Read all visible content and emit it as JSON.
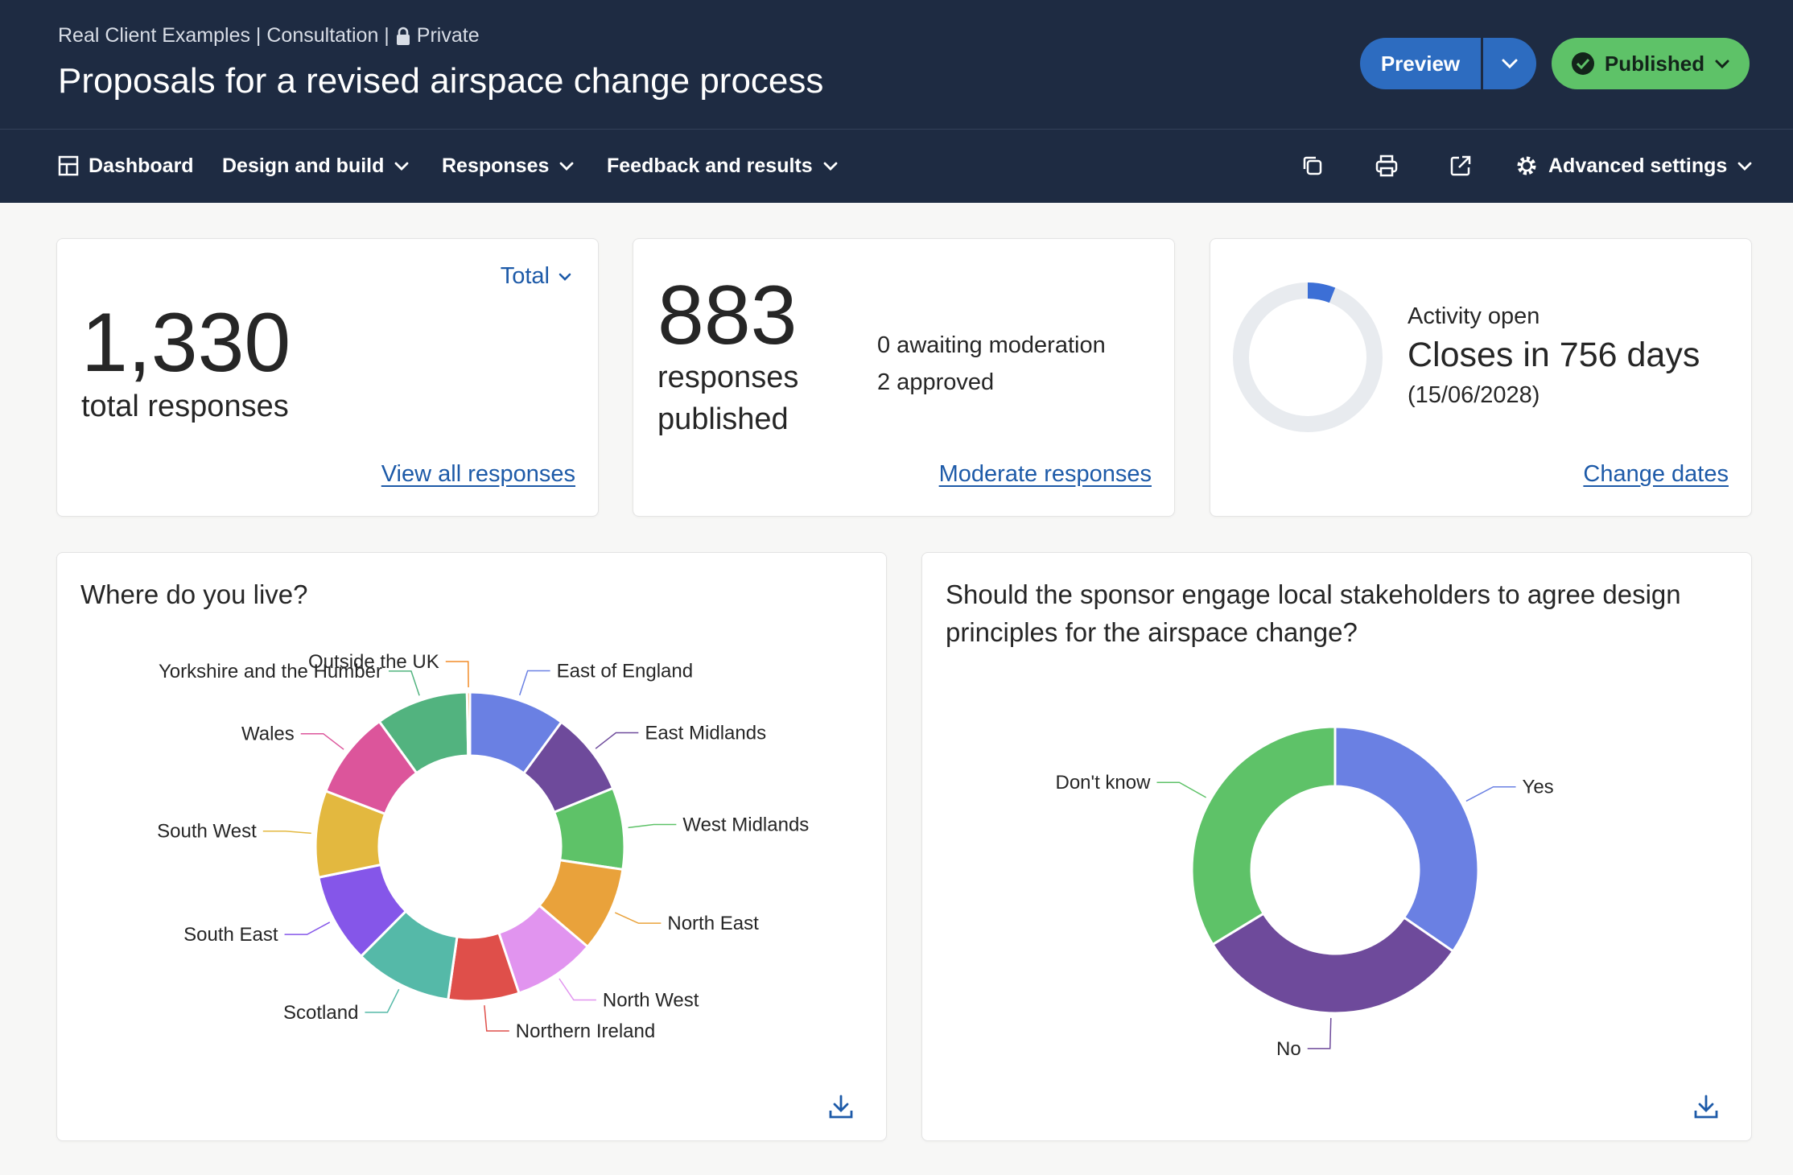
{
  "header": {
    "breadcrumb_1": "Real Client Examples | Consultation |",
    "breadcrumb_private": "Private",
    "title": "Proposals for a revised airspace change process",
    "preview_label": "Preview",
    "published_label": "Published"
  },
  "nav": {
    "dashboard": "Dashboard",
    "design_build": "Design and build",
    "responses": "Responses",
    "feedback": "Feedback and results",
    "advanced": "Advanced settings"
  },
  "stats": {
    "total": {
      "filter_label": "Total",
      "value": "1,330",
      "label": "total responses",
      "link": "View all responses"
    },
    "published": {
      "value": "883",
      "label_1": "responses",
      "label_2": "published",
      "awaiting": "0 awaiting moderation",
      "approved": "2 approved",
      "link": "Moderate responses"
    },
    "activity": {
      "status": "Activity open",
      "closes": "Closes in 756 days",
      "date": "(15/06/2028)",
      "link": "Change dates",
      "progress_fraction": 0.06
    }
  },
  "colors": {
    "accent": "#2d6cc0",
    "published": "#5ec268",
    "header_bg": "#1e2b42",
    "link": "#1d5aa8"
  },
  "chart_data": [
    {
      "type": "pie",
      "title": "Where do you live?",
      "categories": [
        "East of England",
        "East Midlands",
        "West Midlands",
        "North East",
        "North West",
        "Northern Ireland",
        "Scotland",
        "South East",
        "South West",
        "Wales",
        "Yorkshire and the Humber",
        "Outside the UK"
      ],
      "values": [
        9.8,
        8.5,
        8.3,
        8.6,
        8.4,
        7.2,
        9.9,
        9.1,
        8.8,
        8.9,
        9.4,
        0.3
      ],
      "colors": [
        "#6a80e3",
        "#6e4a9b",
        "#5ec268",
        "#e9a23b",
        "#e194ef",
        "#df4f4a",
        "#55b9a8",
        "#8556e9",
        "#e3b83f",
        "#dc559b",
        "#52b37f",
        "#f28c28"
      ]
    },
    {
      "type": "pie",
      "title": "Should the sponsor engage local stakeholders to agree design principles for the airspace change?",
      "categories": [
        "Yes",
        "No",
        "Don't know"
      ],
      "values": [
        34.6,
        31.7,
        33.7
      ],
      "colors": [
        "#6a80e3",
        "#6e4a9b",
        "#5ec268"
      ]
    }
  ]
}
